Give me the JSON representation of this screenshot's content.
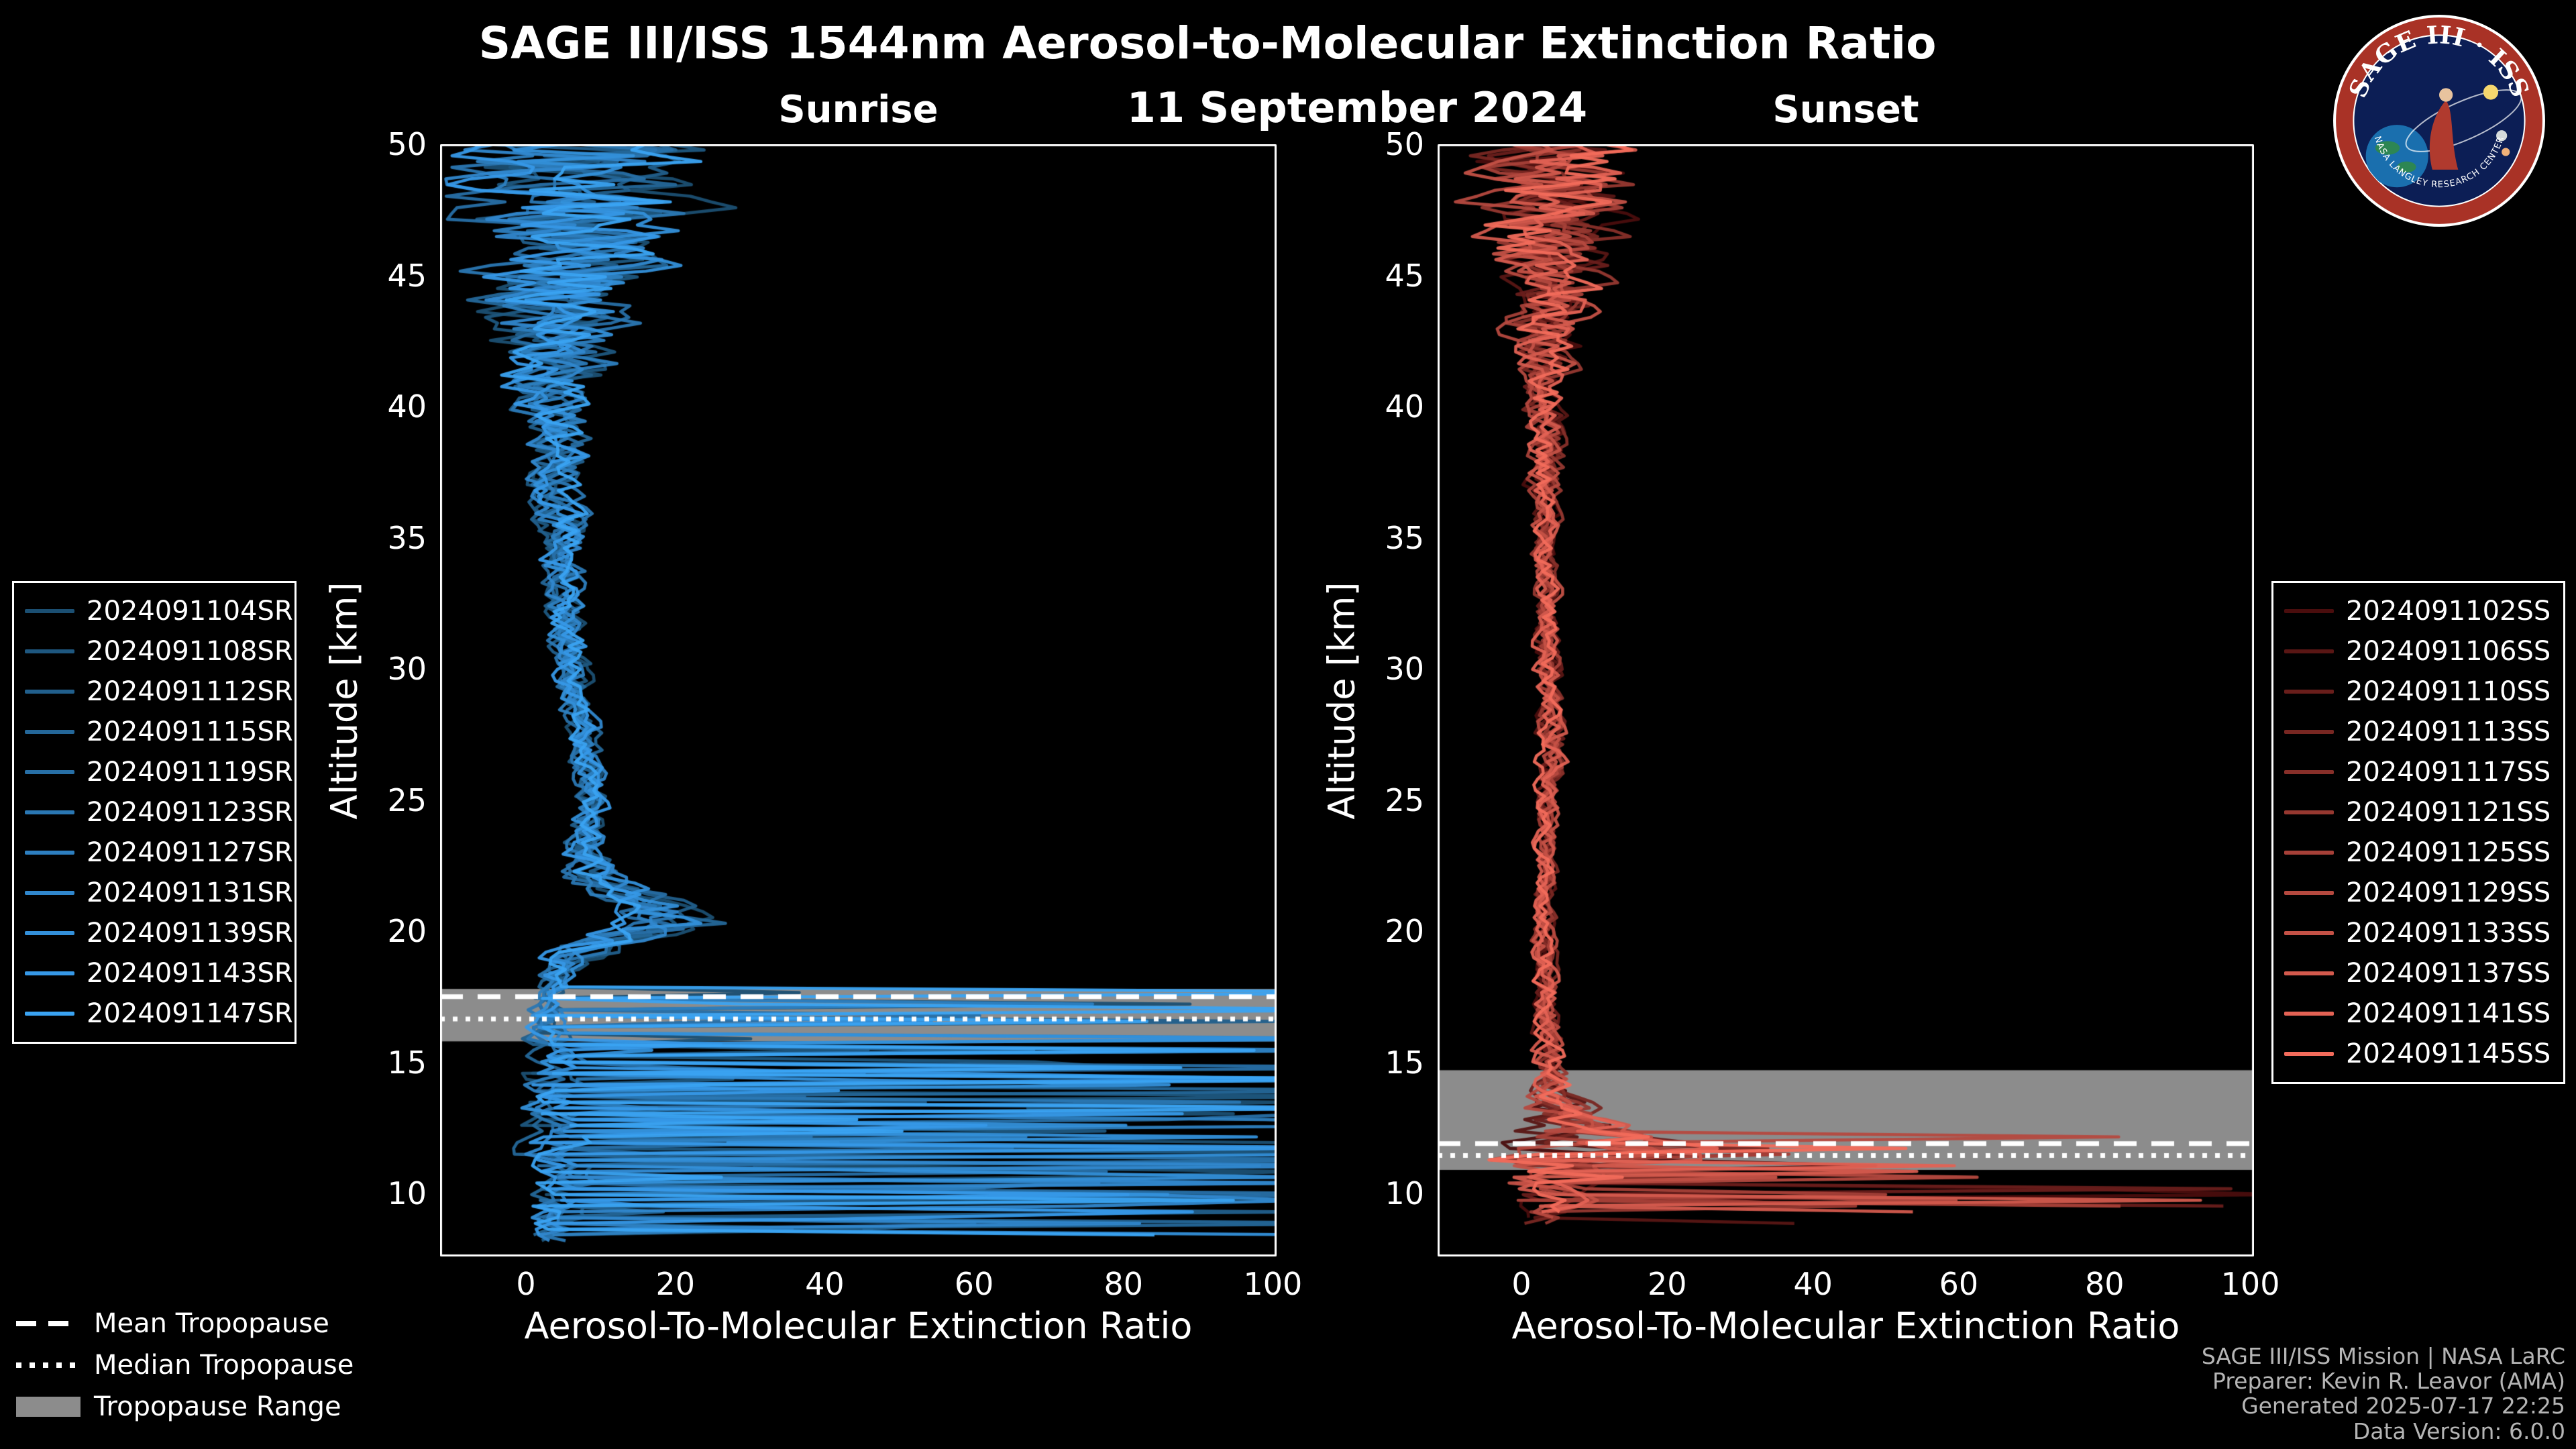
{
  "title": "SAGE III/ISS 1544nm Aerosol-to-Molecular Extinction Ratio",
  "subtitle": "11 September 2024",
  "logo": {
    "title": "SAGE III · ISS",
    "footer": "NASA LANGLEY RESEARCH CENTER"
  },
  "style": {
    "background": "#000000",
    "foreground": "#ffffff",
    "band_color": "#8c8c8c",
    "credit_color": "#b5b5b5",
    "accent_blue": "#3aa3f2",
    "accent_red": "#f26b5b"
  },
  "tropopause_legend": [
    {
      "label": "Mean Tropopause",
      "style": "dashed"
    },
    {
      "label": "Median Tropopause",
      "style": "dotted"
    },
    {
      "label": "Tropopause Range",
      "style": "band"
    }
  ],
  "credits": [
    "SAGE III/ISS Mission | NASA LaRC",
    "Preparer: Kevin R. Leavor (AMA)",
    "Generated 2025-07-17 22:25",
    "Data Version: 6.0.0"
  ],
  "chart_data": [
    {
      "type": "line",
      "panel": "sunrise",
      "title": "Sunrise",
      "xlabel": "Aerosol-To-Molecular Extinction Ratio",
      "ylabel": "Altitude [km]",
      "xlim": [
        -11.5,
        100.5
      ],
      "ylim": [
        7.6,
        50
      ],
      "xticks": [
        0,
        20,
        40,
        60,
        80,
        100
      ],
      "yticks": [
        10,
        15,
        20,
        25,
        30,
        35,
        40,
        45,
        50
      ],
      "grid": false,
      "legend_position": "outside-left",
      "tropopause": {
        "mean_km": 17.5,
        "median_km": 16.65,
        "range_km": [
          15.8,
          17.8
        ]
      },
      "profile": {
        "alt": [
          8,
          10,
          12,
          14,
          15.5,
          16.5,
          17.5,
          18.5,
          19.5,
          20.3,
          21,
          22,
          23,
          25,
          27,
          29,
          31,
          34,
          37,
          40,
          42,
          44,
          46,
          48,
          50
        ],
        "value": [
          4,
          4,
          4,
          4,
          3,
          2.5,
          2.5,
          4,
          9,
          19,
          15,
          10,
          8,
          9,
          8,
          6.5,
          5.5,
          5,
          4.5,
          4,
          4.5,
          5,
          6,
          6,
          7
        ],
        "noise": [
          3,
          3,
          3,
          3,
          2.5,
          2,
          1.5,
          2,
          3.5,
          5.5,
          5,
          3,
          2,
          1.5,
          1.5,
          1.5,
          1.8,
          2,
          2.5,
          3.5,
          6,
          8,
          10,
          12,
          12
        ]
      },
      "spikes": {
        "start_alt": 17.8,
        "high_prob_alt": 16.0,
        "prob_upper": 0.1,
        "prob": 0.26,
        "min": 15,
        "max": 135,
        "end_alt": 8.05,
        "end_jitter": 0.5
      },
      "series": [
        {
          "name": "2024091104SR",
          "color": "#1b4f72"
        },
        {
          "name": "2024091108SR",
          "color": "#1e577f"
        },
        {
          "name": "2024091112SR",
          "color": "#215f8c"
        },
        {
          "name": "2024091115SR",
          "color": "#246799"
        },
        {
          "name": "2024091119SR",
          "color": "#276fa6"
        },
        {
          "name": "2024091123SR",
          "color": "#2a77b3"
        },
        {
          "name": "2024091127SR",
          "color": "#2d7fc0"
        },
        {
          "name": "2024091131SR",
          "color": "#3087cd"
        },
        {
          "name": "2024091139SR",
          "color": "#3390da"
        },
        {
          "name": "2024091143SR",
          "color": "#3698e7"
        },
        {
          "name": "2024091147SR",
          "color": "#3aa3f2"
        }
      ]
    },
    {
      "type": "line",
      "panel": "sunset",
      "title": "Sunset",
      "xlabel": "Aerosol-To-Molecular Extinction Ratio",
      "ylabel": "Altitude [km]",
      "xlim": [
        -11.5,
        100.5
      ],
      "ylim": [
        7.6,
        50
      ],
      "xticks": [
        0,
        20,
        40,
        60,
        80,
        100
      ],
      "yticks": [
        10,
        15,
        20,
        25,
        30,
        35,
        40,
        45,
        50
      ],
      "grid": false,
      "legend_position": "outside-right",
      "tropopause": {
        "mean_km": 11.9,
        "median_km": 11.45,
        "range_km": [
          10.9,
          14.7
        ]
      },
      "profile": {
        "alt": [
          8,
          9,
          10,
          10.8,
          11.5,
          12.2,
          13,
          14,
          15,
          17,
          20,
          23,
          25,
          27,
          29,
          32,
          35,
          38,
          40,
          42,
          44,
          46,
          48,
          50
        ],
        "value": [
          3,
          3.5,
          4,
          5,
          10,
          9,
          5.5,
          4.5,
          4,
          3.5,
          3,
          3.2,
          3.5,
          4.2,
          3.8,
          3.5,
          3.2,
          3.2,
          3.2,
          3.5,
          4,
          4,
          4.5,
          4.5
        ],
        "noise": [
          2,
          3,
          4,
          6,
          12,
          8,
          4,
          2,
          1.5,
          1.2,
          1,
          1,
          1.2,
          1.5,
          1.2,
          1.2,
          1.3,
          1.6,
          2,
          3,
          4.5,
          6,
          7.5,
          8
        ]
      },
      "spikes": {
        "start_alt": 12.8,
        "high_prob_alt": 11.9,
        "prob_upper": 0.1,
        "prob": 0.13,
        "min": 10,
        "max": 105,
        "end_alt": 8.35,
        "end_jitter": 1.2
      },
      "series": [
        {
          "name": "2024091102SS",
          "color": "#4a0d0d"
        },
        {
          "name": "2024091106SS",
          "color": "#591614"
        },
        {
          "name": "2024091110SS",
          "color": "#691e1b"
        },
        {
          "name": "2024091113SS",
          "color": "#782722"
        },
        {
          "name": "2024091117SS",
          "color": "#872f29"
        },
        {
          "name": "2024091121SS",
          "color": "#963830"
        },
        {
          "name": "2024091125SS",
          "color": "#a64038"
        },
        {
          "name": "2024091129SS",
          "color": "#b5493f"
        },
        {
          "name": "2024091133SS",
          "color": "#c45146"
        },
        {
          "name": "2024091137SS",
          "color": "#d35a4d"
        },
        {
          "name": "2024091141SS",
          "color": "#e36254"
        },
        {
          "name": "2024091145SS",
          "color": "#f26b5b"
        }
      ]
    }
  ]
}
